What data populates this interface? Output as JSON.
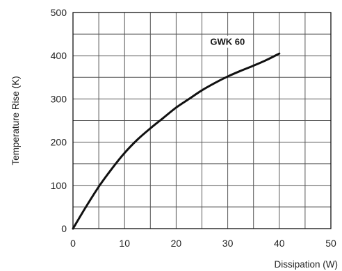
{
  "chart_data": {
    "type": "line",
    "title": "",
    "xlabel": "Dissipation (W)",
    "ylabel": "Temperature Rise (K)",
    "xlim": [
      0,
      50
    ],
    "ylim": [
      0,
      500
    ],
    "x_ticks": [
      "0",
      "10",
      "20",
      "30",
      "40",
      "50"
    ],
    "y_ticks": [
      "0",
      "100",
      "200",
      "300",
      "400",
      "500"
    ],
    "grid": true,
    "series": [
      {
        "name": "GWK 60",
        "x": [
          0,
          2.5,
          5,
          7.5,
          10,
          12.5,
          15,
          17.5,
          20,
          22.5,
          25,
          27.5,
          30,
          32.5,
          35,
          37.5,
          40
        ],
        "values": [
          0,
          50,
          97,
          138,
          175,
          206,
          232,
          256,
          280,
          300,
          320,
          337,
          352,
          365,
          377,
          390,
          405
        ]
      }
    ],
    "colors": {
      "line": "#111111",
      "grid": "#555555",
      "frame": "#111111"
    }
  }
}
